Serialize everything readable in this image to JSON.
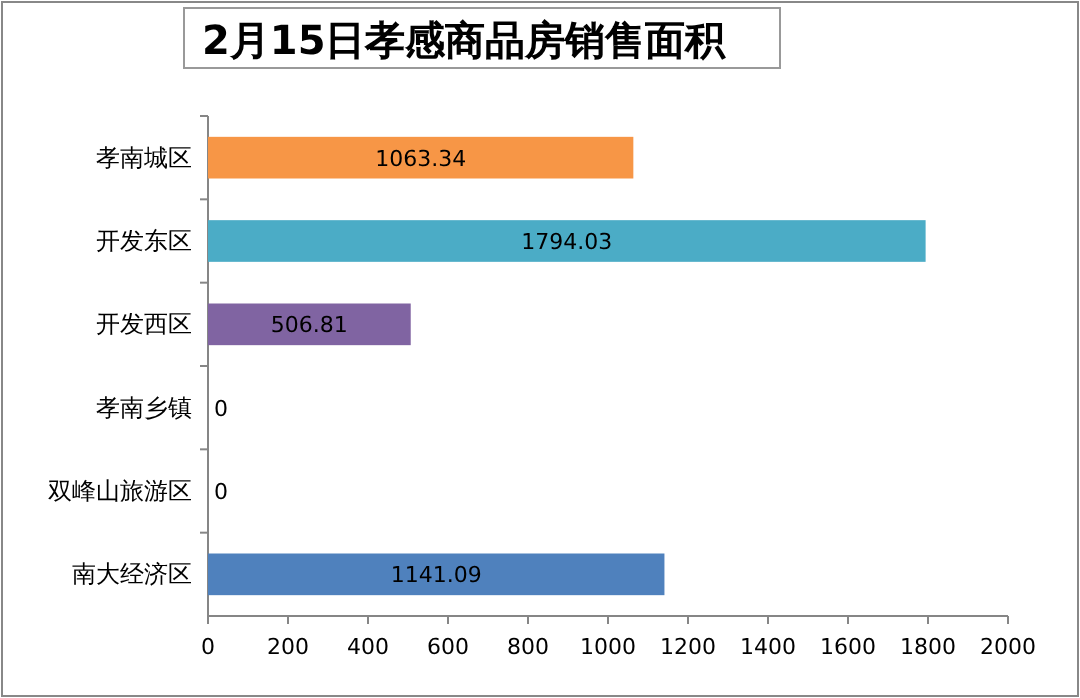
{
  "chart_data": {
    "type": "bar",
    "orientation": "horizontal",
    "title": "2月15日孝感商品房销售面积",
    "categories": [
      "孝南城区",
      "开发东区",
      "开发西区",
      "孝南乡镇",
      "双峰山旅游区",
      "南大经济区"
    ],
    "values": [
      1063.34,
      1794.03,
      506.81,
      0,
      0,
      1141.09
    ],
    "colors": [
      "#f79646",
      "#4bacc6",
      "#8064a2",
      "#4f81bd",
      "#4f81bd",
      "#4f81bd"
    ],
    "xlim": [
      0,
      2000
    ],
    "xticks": [
      0,
      200,
      400,
      600,
      800,
      1000,
      1200,
      1400,
      1600,
      1800,
      2000
    ],
    "data_labels": true,
    "grid": false
  }
}
